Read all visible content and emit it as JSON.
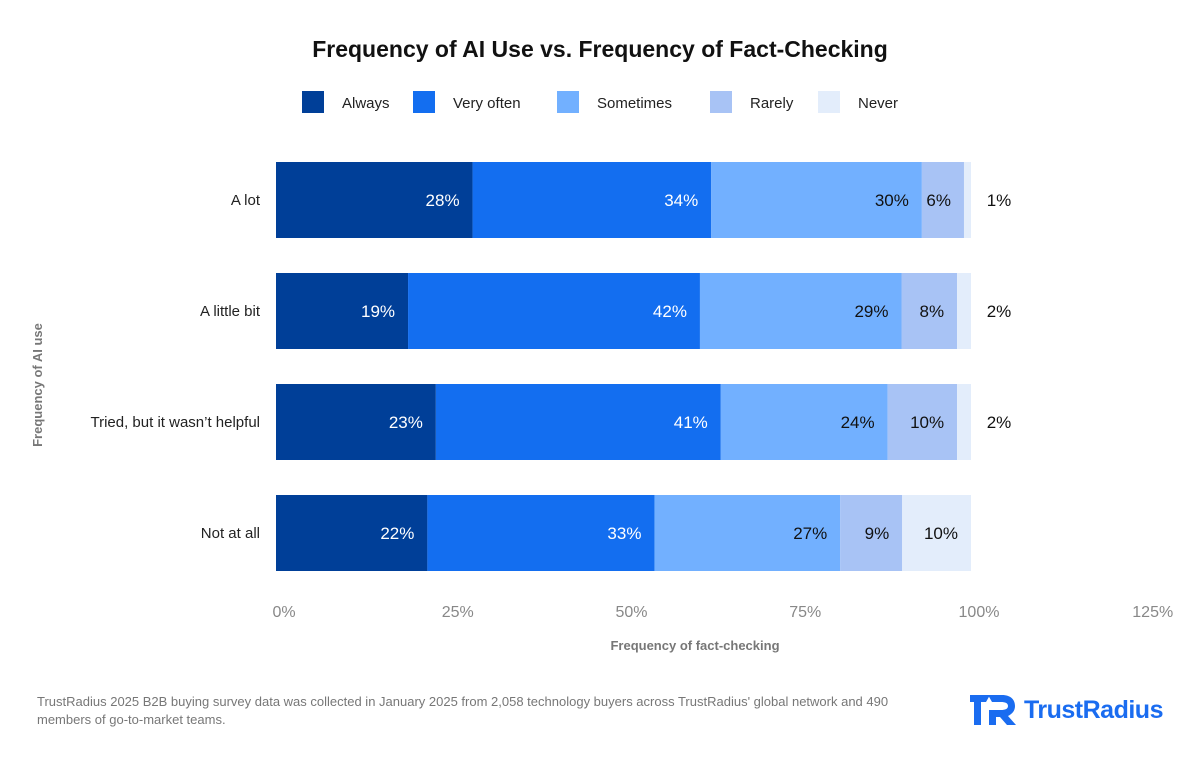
{
  "chart_data": {
    "type": "bar",
    "orientation": "horizontal",
    "stacked": true,
    "title": "Frequency of AI Use vs. Frequency of Fact-Checking",
    "xlabel": "Frequency of fact-checking",
    "ylabel": "Frequency of AI use",
    "xlim": [
      0,
      125
    ],
    "xticks": [
      "0%",
      "25%",
      "50%",
      "75%",
      "100%",
      "125%"
    ],
    "xtick_values": [
      0,
      25,
      50,
      75,
      100,
      125
    ],
    "categories": [
      "A lot",
      "A  little bit",
      "Tried, but it wasn’t helpful",
      "Not at all"
    ],
    "series": [
      {
        "name": "Always",
        "color": "#003f98",
        "text_color": "#ffffff",
        "values": [
          28,
          19,
          23,
          22
        ],
        "labels": [
          "28%",
          "19%",
          "23%",
          "22%"
        ]
      },
      {
        "name": "Very often",
        "color": "#136ef0",
        "text_color": "#ffffff",
        "values": [
          34,
          42,
          41,
          33
        ],
        "labels": [
          "34%",
          "42%",
          "41%",
          "33%"
        ]
      },
      {
        "name": "Sometimes",
        "color": "#72b0ff",
        "text_color": "#111111",
        "values": [
          30,
          29,
          24,
          27
        ],
        "labels": [
          "30%",
          "29%",
          "24%",
          "27%"
        ]
      },
      {
        "name": "Rarely",
        "color": "#a8c3f5",
        "text_color": "#111111",
        "values": [
          6,
          8,
          10,
          9
        ],
        "labels": [
          "6%",
          "8%",
          "10%",
          "9%"
        ]
      },
      {
        "name": "Never",
        "color": "#e3edfb",
        "text_color": "#111111",
        "values": [
          1,
          2,
          2,
          10
        ],
        "labels": [
          "1%",
          "2%",
          "2%",
          "10%"
        ]
      }
    ],
    "legend_placement": "top",
    "grid": false
  },
  "footnote": "TrustRadius 2025 B2B buying survey data was collected in January 2025 from 2,058 technology buyers across TrustRadius' global network and 490 members of go-to-market teams.",
  "logo": {
    "text": "TrustRadius",
    "color": "#1a6cf0"
  }
}
